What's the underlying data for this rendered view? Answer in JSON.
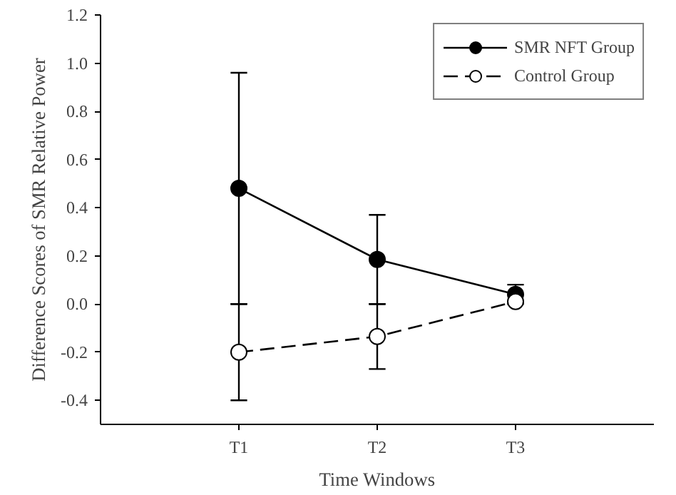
{
  "chart_data": {
    "type": "line",
    "xlabel": "Time Windows",
    "ylabel": "Difference Scores of SMR Relative Power",
    "categories": [
      "T1",
      "T2",
      "T3"
    ],
    "series": [
      {
        "name": "SMR NFT Group",
        "color": "#000000",
        "values": [
          0.48,
          0.185,
          0.04
        ],
        "errors": [
          0.48,
          0.185,
          0.04
        ],
        "marker": "circle",
        "line_style": "solid"
      },
      {
        "name": "Control Group",
        "color": "#ffffff",
        "values": [
          -0.2,
          -0.135,
          0.01
        ],
        "errors": [
          0.2,
          0.135,
          null
        ],
        "marker": "circle",
        "line_style": "dashed"
      }
    ],
    "ylim": [
      -0.5,
      1.2
    ],
    "yticks": [
      {
        "value": -0.4,
        "label": "-0.4"
      },
      {
        "value": -0.2,
        "label": "-0.2"
      },
      {
        "value": 0,
        "label": "0.0"
      },
      {
        "value": 0.2,
        "label": "0.2"
      },
      {
        "value": 0.4,
        "label": "0.4"
      },
      {
        "value": 0.6,
        "label": "0.6"
      },
      {
        "value": 0.8,
        "label": "0.8"
      },
      {
        "value": 1.0,
        "label": "1.0"
      },
      {
        "value": 1.2,
        "label": "1.2"
      }
    ],
    "grid": false,
    "legend": "top right"
  }
}
